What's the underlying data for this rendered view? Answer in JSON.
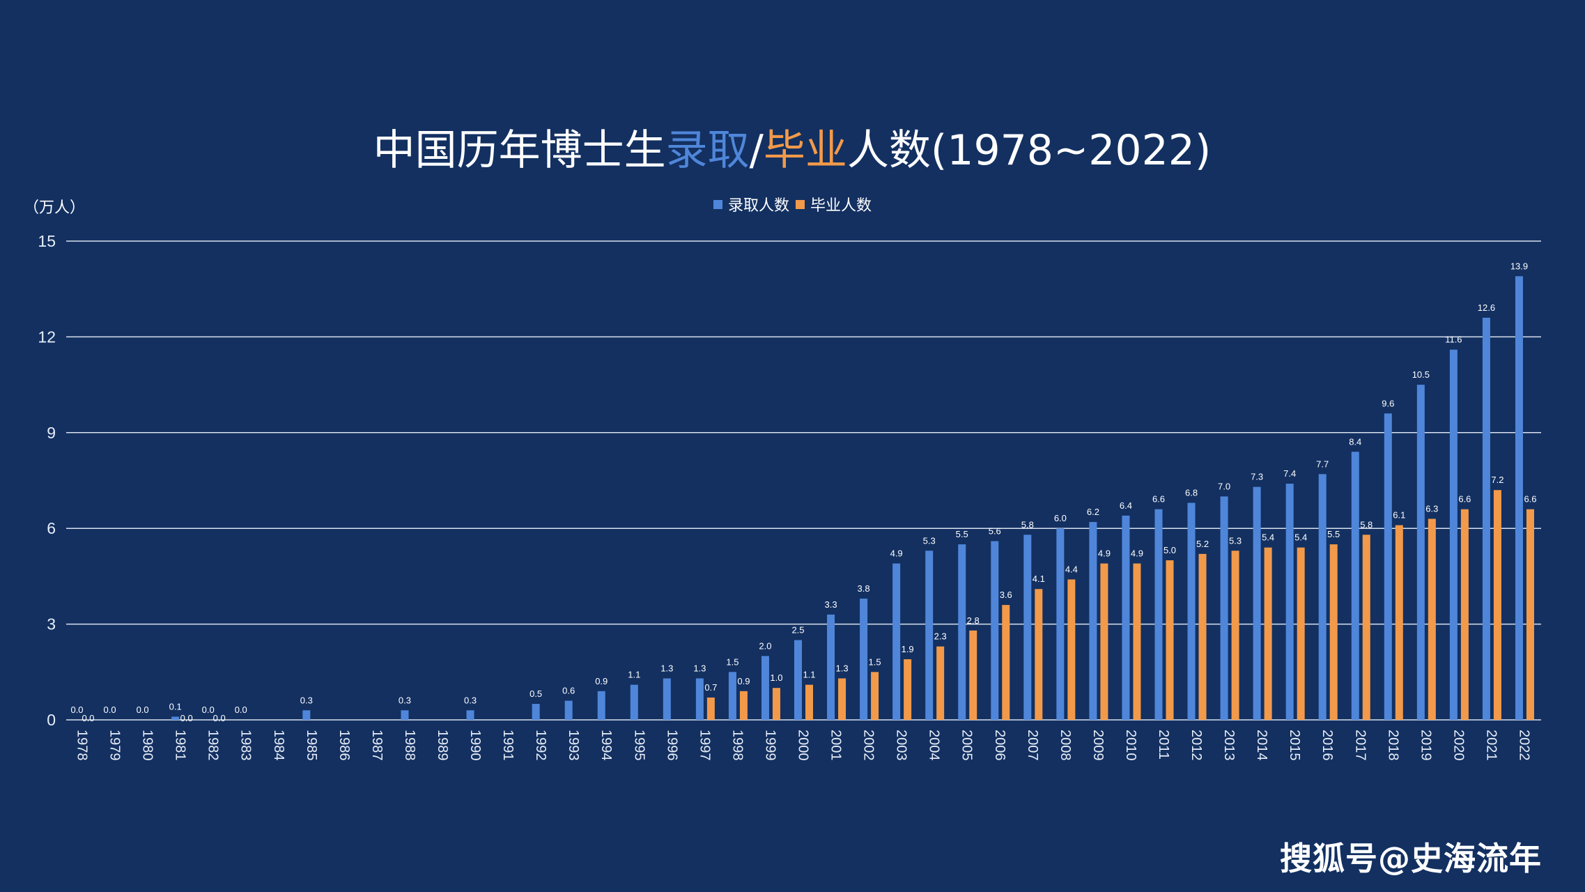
{
  "chart_data": {
    "type": "bar",
    "title_parts": [
      "中国历年博士生",
      "录取",
      "/",
      "毕业",
      "人数(1978~2022)"
    ],
    "title_colors": [
      "#ffffff",
      "#4f86d9",
      "#ffffff",
      "#f29a4a",
      "#ffffff"
    ],
    "ylabel": "（万人）",
    "ylim": [
      0,
      15
    ],
    "yticks": [
      "0",
      "3",
      "6",
      "9",
      "12",
      "15"
    ],
    "legend_position": "top-center",
    "grid": true,
    "categories": [
      "1978",
      "1979",
      "1980",
      "1981",
      "1982",
      "1983",
      "1984",
      "1985",
      "1986",
      "1987",
      "1988",
      "1989",
      "1990",
      "1991",
      "1992",
      "1993",
      "1994",
      "1995",
      "1996",
      "1997",
      "1998",
      "1999",
      "2000",
      "2001",
      "2002",
      "2003",
      "2004",
      "2005",
      "2006",
      "2007",
      "2008",
      "2009",
      "2010",
      "2011",
      "2012",
      "2013",
      "2014",
      "2015",
      "2016",
      "2017",
      "2018",
      "2019",
      "2020",
      "2021",
      "2022"
    ],
    "series": [
      {
        "name": "录取人数",
        "color": "#4f86d9",
        "values": [
          0.0,
          0.0,
          0.0,
          0.1,
          0.0,
          0.0,
          null,
          0.3,
          null,
          null,
          0.3,
          null,
          0.3,
          null,
          0.5,
          0.6,
          0.9,
          1.1,
          1.3,
          1.3,
          1.5,
          2.0,
          2.5,
          3.3,
          3.8,
          4.9,
          5.3,
          5.5,
          5.6,
          5.8,
          6.0,
          6.2,
          6.4,
          6.6,
          6.8,
          7.0,
          7.3,
          7.4,
          7.7,
          8.4,
          9.6,
          10.5,
          11.6,
          12.6,
          13.9
        ],
        "labels": [
          "0.0",
          "0.0",
          "0.0",
          "0.1",
          "0.0",
          "0.0",
          "",
          "0.3",
          "",
          "",
          "0.3",
          "",
          "0.3",
          "",
          "0.5",
          "0.6",
          "0.9",
          "1.1",
          "1.3",
          "1.3",
          "1.5",
          "2.0",
          "2.5",
          "3.3",
          "3.8",
          "4.9",
          "5.3",
          "5.5",
          "5.6",
          "5.8",
          "6.0",
          "6.2",
          "6.4",
          "6.6",
          "6.8",
          "7.0",
          "7.3",
          "7.4",
          "7.7",
          "8.4",
          "9.6",
          "10.5",
          "11.6",
          "12.6",
          "13.9"
        ]
      },
      {
        "name": "毕业人数",
        "color": "#f29a4a",
        "values": [
          0.0,
          null,
          null,
          0.0,
          0.0,
          null,
          null,
          null,
          null,
          null,
          null,
          null,
          null,
          null,
          null,
          null,
          null,
          null,
          null,
          0.7,
          0.9,
          1.0,
          1.1,
          1.3,
          1.5,
          1.9,
          2.3,
          2.8,
          3.6,
          4.1,
          4.4,
          4.9,
          4.9,
          5.0,
          5.2,
          5.3,
          5.4,
          5.4,
          5.5,
          5.8,
          6.1,
          6.3,
          6.6,
          7.2,
          6.6
        ],
        "labels": [
          "0.0",
          "",
          "",
          "0.0",
          "0.0",
          "",
          "",
          "",
          "",
          "",
          "",
          "",
          "",
          "",
          "",
          "",
          "",
          "",
          "",
          "0.7",
          "0.9",
          "1.0",
          "1.1",
          "1.3",
          "1.5",
          "1.9",
          "2.3",
          "2.8",
          "3.6",
          "4.1",
          "4.4",
          "4.9",
          "4.9",
          "5.0",
          "5.2",
          "5.3",
          "5.4",
          "5.4",
          "5.5",
          "5.8",
          "6.1",
          "6.3",
          "6.6",
          "7.2",
          "6.6"
        ]
      }
    ]
  },
  "watermark": "搜狐号@史海流年"
}
